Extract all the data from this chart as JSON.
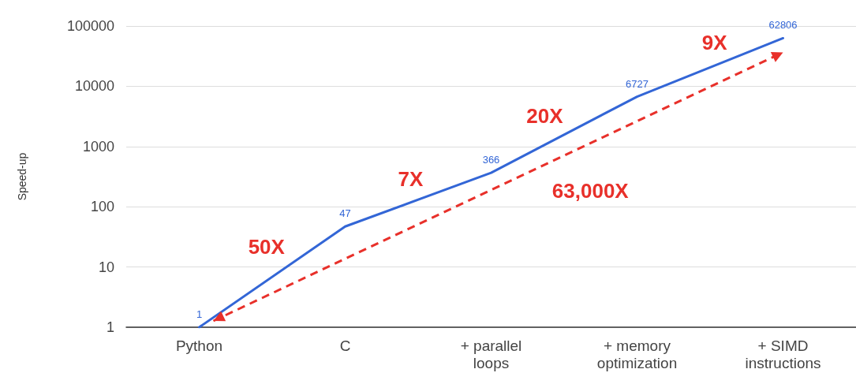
{
  "chart_data": {
    "type": "line",
    "ylabel": "Speed-up",
    "categories": [
      "Python",
      "C",
      "+ parallel\nloops",
      "+ memory\noptimization",
      "+ SIMD\ninstructions"
    ],
    "series": [
      {
        "color": "#3366d6",
        "values": [
          1,
          47,
          366,
          6727,
          62806
        ]
      }
    ],
    "log": "y",
    "ylim": [
      1,
      100000
    ],
    "yticks": [
      1,
      10,
      100,
      1000,
      10000,
      100000
    ],
    "grid": "y",
    "marker": "none",
    "line_style": "solid",
    "data_labels": true,
    "annotations": [
      "50X",
      "7X",
      "20X",
      "9X",
      "63,000X"
    ]
  }
}
